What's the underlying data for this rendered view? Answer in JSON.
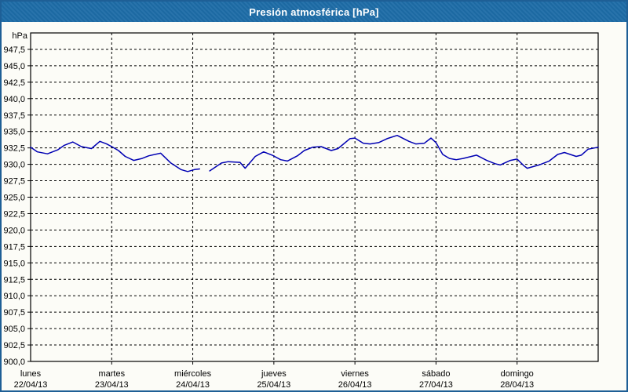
{
  "window": {
    "title": "Presión atmosférica [hPa]"
  },
  "colors": {
    "title_bar_bg": "#1d6ca7",
    "title_text": "#ffffff",
    "window_border": "#1e5f96",
    "window_bg": "#fcfcf7",
    "plot_border": "#000000",
    "grid": "#000000",
    "line": "#0000b3",
    "label_text": "#000000"
  },
  "chart_data": {
    "type": "line",
    "title": "Presión atmosférica [hPa]",
    "ylabel": "hPa",
    "xlabel": "",
    "ylim": [
      900,
      950
    ],
    "ytick_step": 2.5,
    "ytick_labels": [
      "947,5",
      "945,0",
      "942,5",
      "940,0",
      "937,5",
      "935,0",
      "932,5",
      "930,0",
      "927,5",
      "925,0",
      "922,5",
      "920,0",
      "917,5",
      "915,0",
      "912,5",
      "910,0",
      "907,5",
      "905,0",
      "902,5",
      "900,0"
    ],
    "x_days": [
      {
        "name": "lunes",
        "date": "22/04/13"
      },
      {
        "name": "martes",
        "date": "23/04/13"
      },
      {
        "name": "miércoles",
        "date": "24/04/13"
      },
      {
        "name": "jueves",
        "date": "25/04/13"
      },
      {
        "name": "viernes",
        "date": "26/04/13"
      },
      {
        "name": "sábado",
        "date": "27/04/13"
      },
      {
        "name": "domingo",
        "date": "28/04/13"
      }
    ],
    "x_hours_total": 168,
    "grid": "dashed",
    "legend": "none",
    "series": [
      {
        "name": "Presión atmosférica",
        "unit": "hPa",
        "color": "#0000b3",
        "points": [
          [
            0,
            932.6
          ],
          [
            2,
            931.9
          ],
          [
            5,
            931.6
          ],
          [
            8,
            932.2
          ],
          [
            10,
            932.9
          ],
          [
            12.5,
            933.4
          ],
          [
            15,
            932.7
          ],
          [
            18,
            932.4
          ],
          [
            20.5,
            933.5
          ],
          [
            22.5,
            933.1
          ],
          [
            24,
            932.7
          ],
          [
            26,
            932.1
          ],
          [
            28,
            931.2
          ],
          [
            30.5,
            930.6
          ],
          [
            33,
            930.9
          ],
          [
            35,
            931.3
          ],
          [
            38.5,
            931.7
          ],
          [
            41.5,
            930.2
          ],
          [
            44.5,
            929.2
          ],
          [
            46.5,
            928.9
          ],
          [
            48.5,
            929.2
          ],
          [
            50,
            929.3
          ],
          [
            51.5,
            null
          ],
          [
            53,
            929.0
          ],
          [
            56.5,
            930.2
          ],
          [
            58.5,
            930.4
          ],
          [
            62,
            930.3
          ],
          [
            63.5,
            929.4
          ],
          [
            66.5,
            931.2
          ],
          [
            69,
            931.9
          ],
          [
            71.5,
            931.4
          ],
          [
            74,
            930.7
          ],
          [
            76,
            930.5
          ],
          [
            79,
            931.3
          ],
          [
            81,
            932.1
          ],
          [
            83.5,
            932.6
          ],
          [
            86,
            932.7
          ],
          [
            89,
            932.1
          ],
          [
            91,
            932.4
          ],
          [
            94.5,
            933.9
          ],
          [
            96,
            934.0
          ],
          [
            98.5,
            933.2
          ],
          [
            100.5,
            933.1
          ],
          [
            103,
            933.3
          ],
          [
            105.5,
            933.9
          ],
          [
            108.5,
            934.4
          ],
          [
            112,
            933.5
          ],
          [
            114,
            933.1
          ],
          [
            116.5,
            933.2
          ],
          [
            118.5,
            934.0
          ],
          [
            120,
            933.3
          ],
          [
            122,
            931.5
          ],
          [
            124,
            930.9
          ],
          [
            126,
            930.7
          ],
          [
            128,
            930.9
          ],
          [
            132,
            931.4
          ],
          [
            135,
            930.6
          ],
          [
            137.5,
            930.1
          ],
          [
            139,
            929.9
          ],
          [
            142,
            930.6
          ],
          [
            144,
            930.8
          ],
          [
            146,
            929.8
          ],
          [
            147,
            929.4
          ],
          [
            150.5,
            929.9
          ],
          [
            153.5,
            930.5
          ],
          [
            156,
            931.5
          ],
          [
            158,
            931.8
          ],
          [
            161.5,
            931.2
          ],
          [
            163,
            931.4
          ],
          [
            165,
            932.3
          ],
          [
            168,
            932.6
          ]
        ]
      }
    ]
  }
}
